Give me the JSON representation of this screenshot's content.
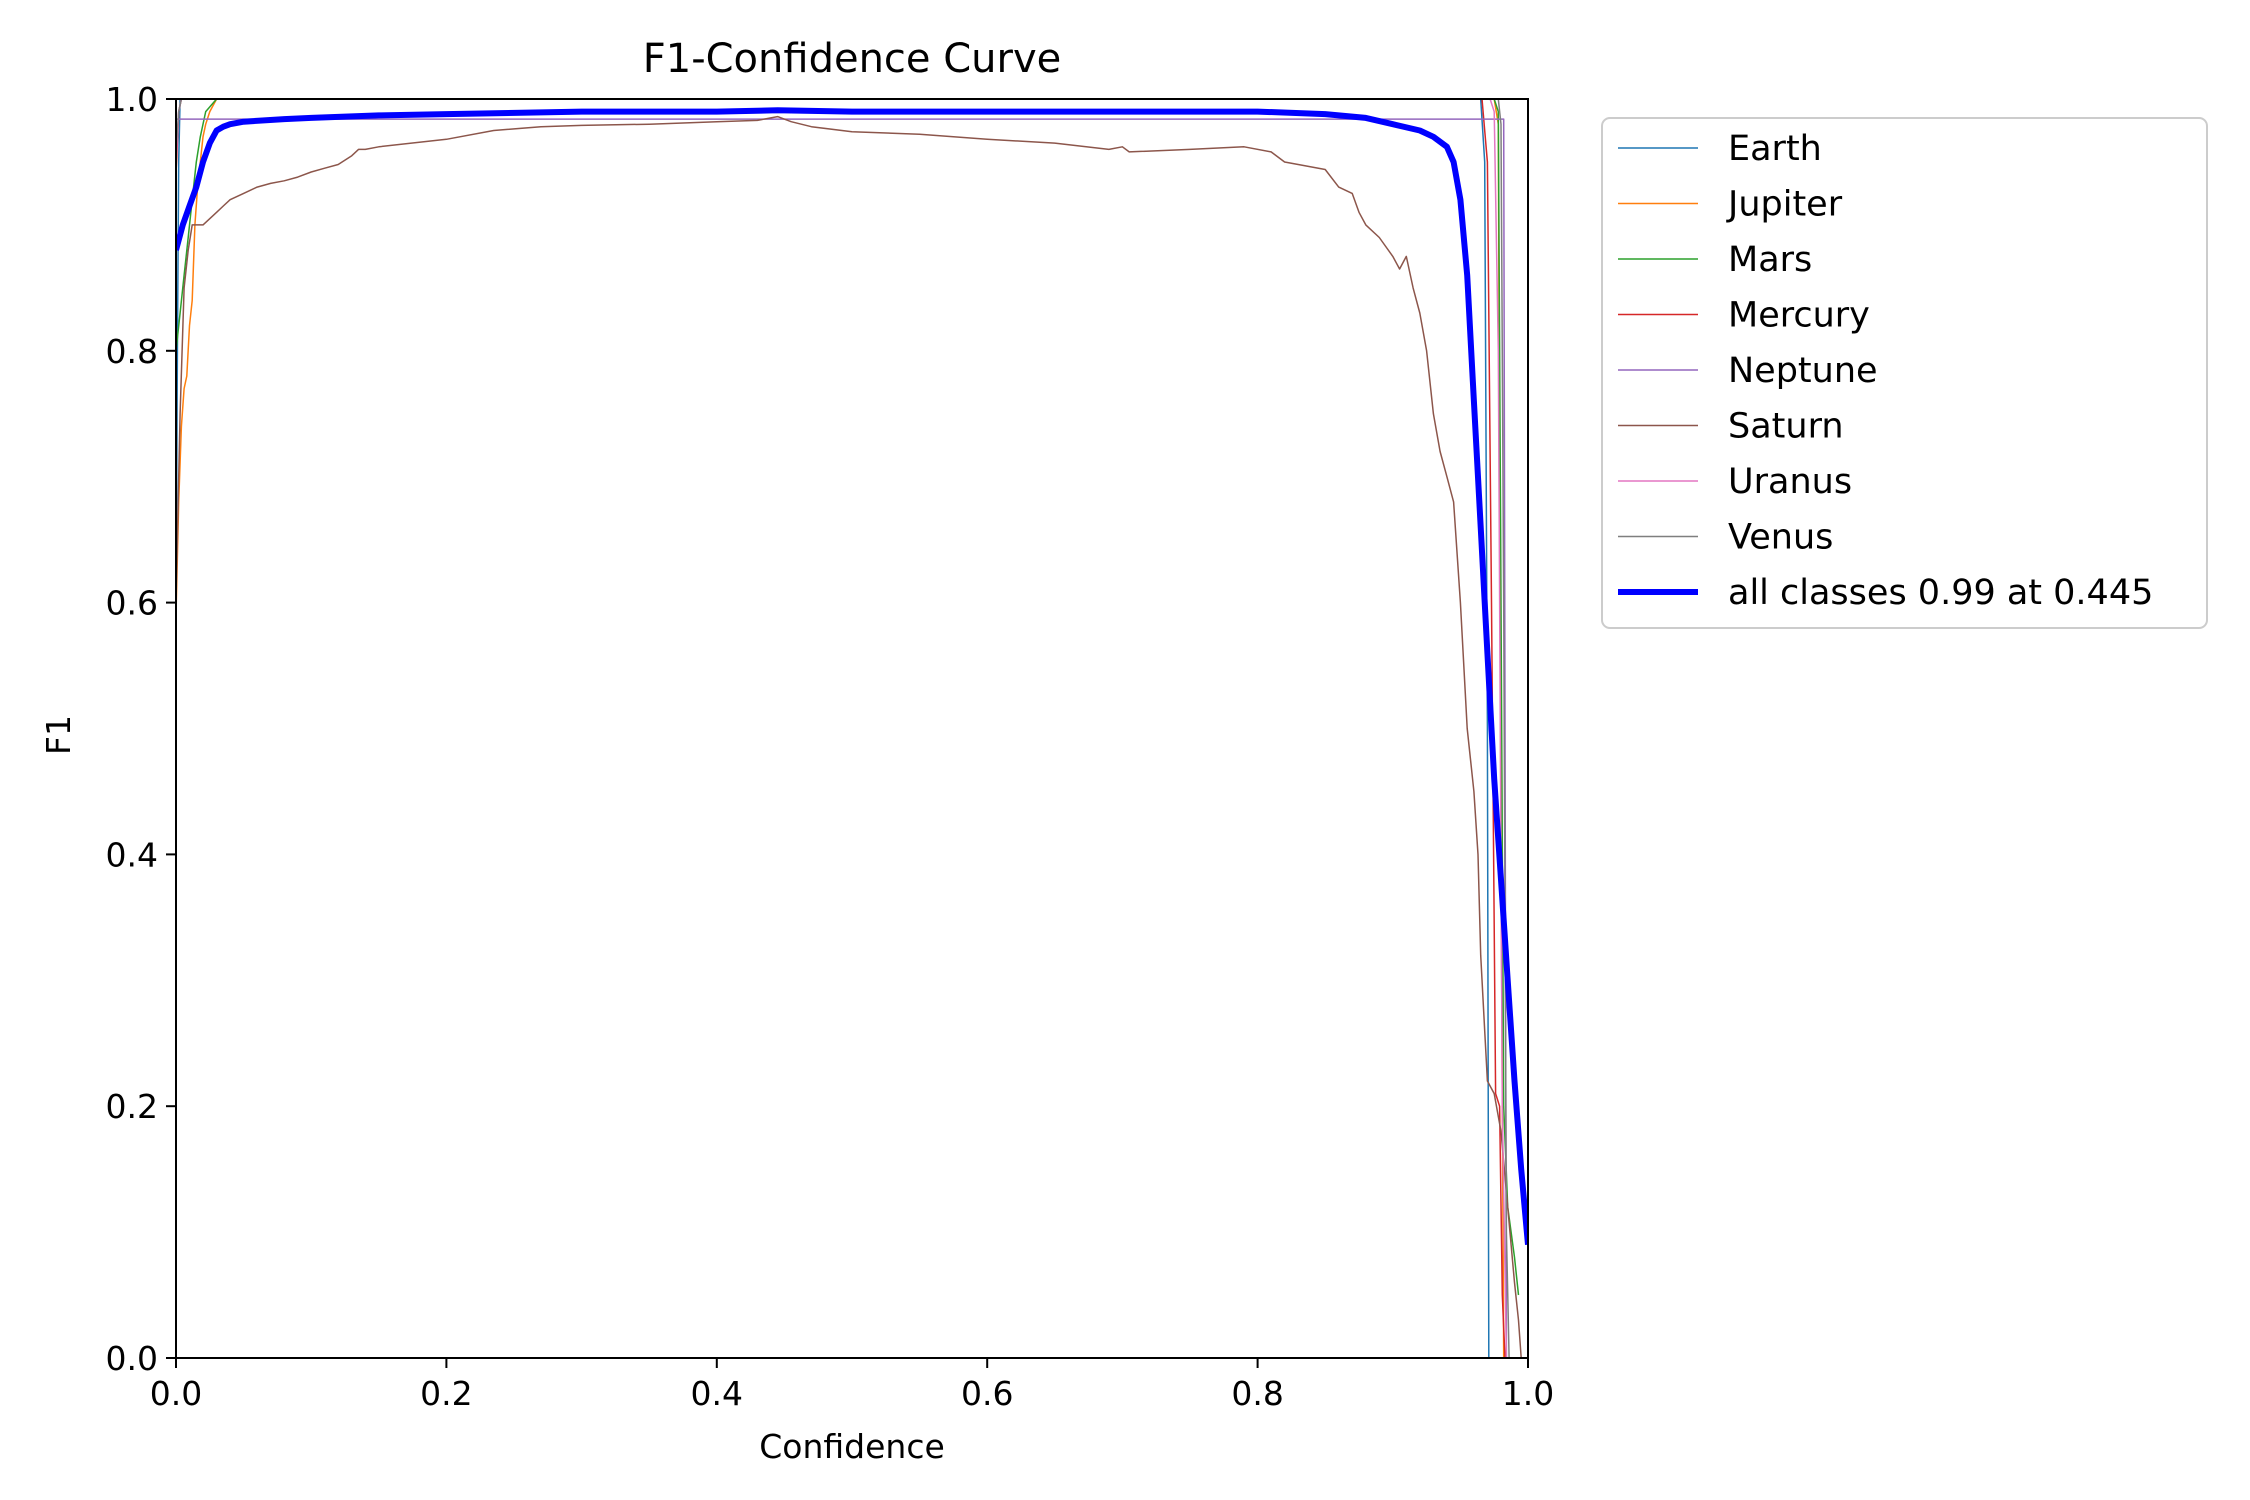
{
  "chart_data": {
    "type": "line",
    "title": "F1-Confidence Curve",
    "xlabel": "Confidence",
    "ylabel": "F1",
    "xlim": [
      0.0,
      1.0
    ],
    "ylim": [
      0.0,
      1.0
    ],
    "xticks": [
      "0.0",
      "0.2",
      "0.4",
      "0.6",
      "0.8",
      "1.0"
    ],
    "yticks": [
      "0.0",
      "0.2",
      "0.4",
      "0.6",
      "0.8",
      "1.0"
    ],
    "grid": false,
    "legend_position": "outside-top-right",
    "series": [
      {
        "name": "Earth",
        "color": "#1f77b4",
        "width": 1.5,
        "x": [
          0.0,
          0.001,
          0.002,
          0.003,
          0.965,
          0.968,
          0.97,
          0.971
        ],
        "y": [
          0.59,
          0.8,
          0.95,
          1.0,
          1.0,
          0.95,
          0.5,
          0.0
        ]
      },
      {
        "name": "Jupiter",
        "color": "#ff7f0e",
        "width": 1.5,
        "x": [
          0.0,
          0.002,
          0.004,
          0.006,
          0.008,
          0.01,
          0.012,
          0.014,
          0.016,
          0.018,
          0.02,
          0.022,
          0.025,
          0.03,
          0.975,
          0.978,
          0.98,
          0.982
        ],
        "y": [
          0.59,
          0.68,
          0.74,
          0.77,
          0.78,
          0.82,
          0.84,
          0.9,
          0.93,
          0.95,
          0.97,
          0.98,
          0.99,
          1.0,
          1.0,
          0.98,
          0.4,
          0.0
        ]
      },
      {
        "name": "Mars",
        "color": "#2ca02c",
        "width": 1.5,
        "x": [
          0.0,
          0.003,
          0.006,
          0.009,
          0.012,
          0.015,
          0.018,
          0.022,
          0.03,
          0.045,
          0.975,
          0.978,
          0.98,
          0.982,
          0.985,
          0.99,
          0.993
        ],
        "y": [
          0.8,
          0.83,
          0.86,
          0.89,
          0.92,
          0.95,
          0.97,
          0.99,
          1.0,
          1.0,
          1.0,
          0.99,
          0.6,
          0.2,
          0.12,
          0.08,
          0.05
        ]
      },
      {
        "name": "Mercury",
        "color": "#d62728",
        "width": 1.5,
        "x": [
          0.0,
          0.002,
          0.004,
          0.966,
          0.97,
          0.973,
          0.976,
          0.979,
          0.981,
          0.983
        ],
        "y": [
          0.94,
          0.99,
          1.0,
          1.0,
          0.95,
          0.6,
          0.21,
          0.2,
          0.05,
          0.0
        ]
      },
      {
        "name": "Neptune",
        "color": "#9467bd",
        "width": 1.5,
        "x": [
          0.0,
          0.982,
          0.984
        ],
        "y": [
          0.984,
          0.984,
          0.0
        ]
      },
      {
        "name": "Saturn",
        "color": "#8c564b",
        "width": 1.5,
        "x": [
          0.0,
          0.003,
          0.006,
          0.009,
          0.012,
          0.015,
          0.018,
          0.02,
          0.03,
          0.035,
          0.04,
          0.05,
          0.06,
          0.07,
          0.08,
          0.09,
          0.1,
          0.11,
          0.12,
          0.13,
          0.135,
          0.14,
          0.15,
          0.2,
          0.235,
          0.27,
          0.3,
          0.35,
          0.4,
          0.43,
          0.445,
          0.455,
          0.47,
          0.5,
          0.55,
          0.6,
          0.65,
          0.69,
          0.7,
          0.705,
          0.75,
          0.79,
          0.81,
          0.82,
          0.83,
          0.85,
          0.86,
          0.87,
          0.875,
          0.88,
          0.89,
          0.9,
          0.905,
          0.91,
          0.915,
          0.92,
          0.925,
          0.93,
          0.935,
          0.94,
          0.945,
          0.95,
          0.955,
          0.96,
          0.963,
          0.965,
          0.968,
          0.97,
          0.975,
          0.98,
          0.985,
          0.99,
          0.993,
          0.995
        ],
        "y": [
          0.6,
          0.75,
          0.85,
          0.88,
          0.9,
          0.9,
          0.9,
          0.9,
          0.91,
          0.915,
          0.92,
          0.925,
          0.93,
          0.933,
          0.935,
          0.938,
          0.942,
          0.945,
          0.948,
          0.955,
          0.96,
          0.96,
          0.962,
          0.968,
          0.975,
          0.978,
          0.979,
          0.98,
          0.982,
          0.983,
          0.986,
          0.982,
          0.978,
          0.974,
          0.972,
          0.968,
          0.965,
          0.96,
          0.962,
          0.958,
          0.96,
          0.962,
          0.958,
          0.95,
          0.948,
          0.944,
          0.93,
          0.925,
          0.91,
          0.9,
          0.89,
          0.875,
          0.865,
          0.875,
          0.85,
          0.83,
          0.8,
          0.75,
          0.72,
          0.7,
          0.68,
          0.6,
          0.5,
          0.45,
          0.4,
          0.32,
          0.26,
          0.22,
          0.21,
          0.18,
          0.12,
          0.06,
          0.03,
          0.0
        ]
      },
      {
        "name": "Uranus",
        "color": "#e377c2",
        "width": 1.5,
        "x": [
          0.0,
          0.002,
          0.004,
          0.972,
          0.975,
          0.978,
          0.981,
          0.984
        ],
        "y": [
          0.95,
          0.99,
          1.0,
          1.0,
          0.99,
          0.8,
          0.2,
          0.0
        ]
      },
      {
        "name": "Venus",
        "color": "#7f7f7f",
        "width": 1.5,
        "x": [
          0.0,
          0.002,
          0.004,
          0.978,
          0.98,
          0.982,
          0.984,
          0.986
        ],
        "y": [
          0.96,
          0.99,
          1.0,
          1.0,
          0.98,
          0.6,
          0.1,
          0.0
        ]
      },
      {
        "name": "all classes 0.99 at 0.445",
        "color": "#0000ff",
        "width": 6,
        "x": [
          0.0,
          0.005,
          0.01,
          0.015,
          0.02,
          0.025,
          0.03,
          0.035,
          0.04,
          0.05,
          0.08,
          0.1,
          0.15,
          0.2,
          0.3,
          0.4,
          0.445,
          0.5,
          0.6,
          0.7,
          0.8,
          0.85,
          0.88,
          0.9,
          0.92,
          0.93,
          0.94,
          0.945,
          0.95,
          0.955,
          0.96,
          0.965,
          0.97,
          0.975,
          0.98,
          0.985,
          0.99,
          0.995,
          1.0
        ],
        "y": [
          0.88,
          0.9,
          0.915,
          0.93,
          0.95,
          0.965,
          0.975,
          0.978,
          0.98,
          0.982,
          0.984,
          0.985,
          0.987,
          0.988,
          0.99,
          0.99,
          0.991,
          0.99,
          0.99,
          0.99,
          0.99,
          0.988,
          0.985,
          0.98,
          0.975,
          0.97,
          0.962,
          0.95,
          0.92,
          0.86,
          0.76,
          0.66,
          0.56,
          0.46,
          0.38,
          0.3,
          0.22,
          0.15,
          0.09
        ]
      }
    ]
  }
}
